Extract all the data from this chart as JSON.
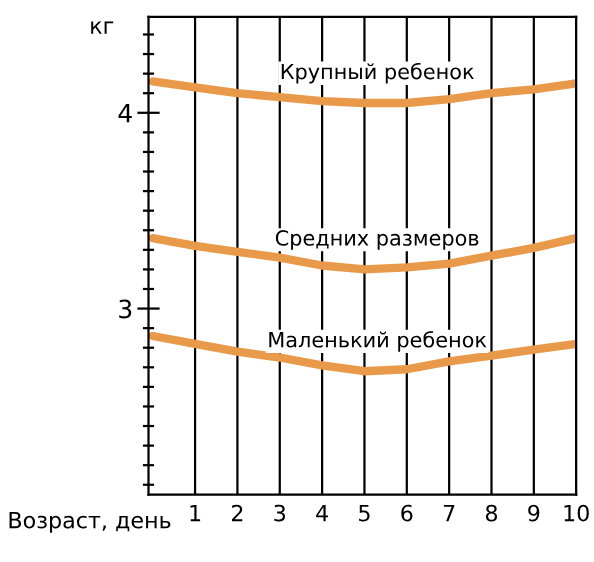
{
  "chart_data": {
    "type": "line",
    "xlabel": "Возраст, день",
    "ylabel": "кг",
    "x": [
      0,
      1,
      2,
      3,
      4,
      5,
      6,
      7,
      8,
      9,
      10
    ],
    "series": [
      {
        "name": "Крупный ребенок",
        "color": "#e89a4a",
        "values": [
          4.16,
          4.13,
          4.1,
          4.08,
          4.06,
          4.05,
          4.05,
          4.07,
          4.1,
          4.12,
          4.15
        ]
      },
      {
        "name": "Средних размеров",
        "color": "#e89a4a",
        "values": [
          3.36,
          3.32,
          3.29,
          3.26,
          3.22,
          3.2,
          3.21,
          3.23,
          3.27,
          3.31,
          3.36
        ]
      },
      {
        "name": "Маленький ребенок",
        "color": "#e89a4a",
        "values": [
          2.86,
          2.82,
          2.78,
          2.75,
          2.71,
          2.68,
          2.69,
          2.73,
          2.76,
          2.79,
          2.82
        ]
      }
    ],
    "xlim": [
      -0.1,
      10
    ],
    "ylim": [
      2.05,
      4.49
    ],
    "xticks": [
      1,
      2,
      3,
      4,
      5,
      6,
      7,
      8,
      9,
      10
    ],
    "yticks": [
      {
        "value": 2.1,
        "label": null
      },
      {
        "value": 2.2,
        "label": null
      },
      {
        "value": 2.3,
        "label": null
      },
      {
        "value": 2.4,
        "label": null
      },
      {
        "value": 2.5,
        "label": null
      },
      {
        "value": 2.6,
        "label": null
      },
      {
        "value": 2.7,
        "label": null
      },
      {
        "value": 2.8,
        "label": null
      },
      {
        "value": 2.9,
        "label": null
      },
      {
        "value": 3,
        "label": "3"
      },
      {
        "value": 3.1,
        "label": null
      },
      {
        "value": 3.2,
        "label": null
      },
      {
        "value": 3.3,
        "label": null
      },
      {
        "value": 3.4,
        "label": null
      },
      {
        "value": 3.5,
        "label": null
      },
      {
        "value": 3.6,
        "label": null
      },
      {
        "value": 3.7,
        "label": null
      },
      {
        "value": 3.8,
        "label": null
      },
      {
        "value": 3.9,
        "label": null
      },
      {
        "value": 4,
        "label": "4"
      },
      {
        "value": 4.1,
        "label": null
      },
      {
        "value": 4.2,
        "label": null
      },
      {
        "value": 4.3,
        "label": null
      },
      {
        "value": 4.4,
        "label": null
      }
    ],
    "grid": "x",
    "line_style": "solid",
    "marker": "none"
  }
}
